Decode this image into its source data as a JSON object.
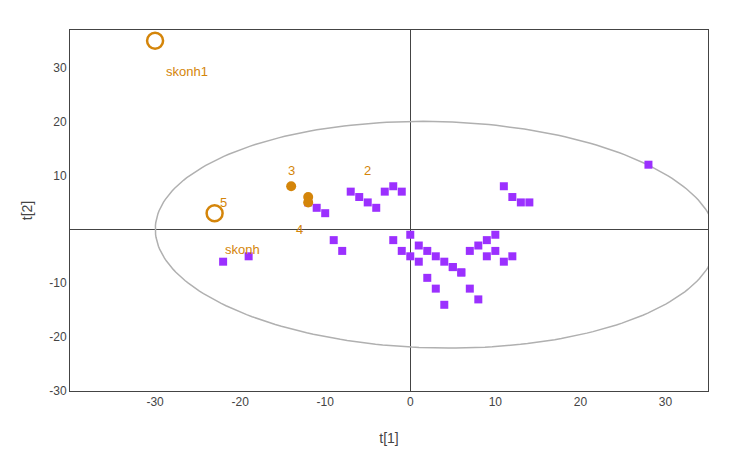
{
  "chart_data": {
    "type": "scatter",
    "xlabel": "t[1]",
    "ylabel": "t[2]",
    "xlim": [
      -40,
      35
    ],
    "ylim": [
      -30,
      37
    ],
    "xticks": [
      -30,
      -20,
      -10,
      0,
      10,
      20,
      30
    ],
    "yticks": [
      -30,
      -20,
      -10,
      10,
      20,
      30
    ],
    "grid": false,
    "series": [
      {
        "color": "#9B30FF",
        "marker": "square",
        "x": [
          -22,
          -19,
          -12,
          -11,
          -10,
          -9,
          -8,
          -7,
          -6,
          -5,
          -4,
          -3,
          -2,
          -1,
          0,
          1,
          2,
          3,
          4,
          5,
          6,
          7,
          8,
          9,
          10,
          11,
          12,
          13,
          14,
          -2,
          -1,
          0,
          1,
          2,
          3,
          4,
          5,
          6,
          7,
          8,
          9,
          10,
          11,
          12,
          28
        ],
        "values": [
          -6,
          -5,
          5,
          4,
          3,
          -2,
          -4,
          7,
          6,
          5,
          4,
          7,
          8,
          7,
          -1,
          -3,
          -4,
          -5,
          -6,
          -7,
          -8,
          -4,
          -3,
          -2,
          -1,
          8,
          6,
          5,
          5,
          -2,
          -4,
          -5,
          -6,
          -9,
          -11,
          -14,
          -7,
          -8,
          -11,
          -13,
          -5,
          -4,
          -6,
          -5,
          12
        ]
      },
      {
        "color": "#D4850A",
        "marker": "circle",
        "x": [
          -14,
          -12,
          -12
        ],
        "values": [
          8,
          6,
          5
        ]
      },
      {
        "color": "#D4850A",
        "marker": "circle-open",
        "x": [
          -30,
          -23
        ],
        "values": [
          35,
          3
        ]
      }
    ],
    "ellipse": {
      "cx": 3,
      "cy": -1,
      "width": 66,
      "height": 42,
      "angle": -3,
      "color": "#b0b0b0"
    },
    "point_labels": [
      {
        "text": "skonh1",
        "x": -29,
        "y": 31,
        "color": "#D4850A"
      },
      {
        "text": "skonh",
        "x": -22,
        "y": -2,
        "color": "#D4850A"
      }
    ],
    "cluster_labels": [
      {
        "text": "3",
        "x": -14,
        "y": 11,
        "color": "#D4850A"
      },
      {
        "text": "2",
        "x": -5,
        "y": 11,
        "color": "#D4850A"
      },
      {
        "text": "4",
        "x": -13,
        "y": 0,
        "color": "#D4850A"
      },
      {
        "text": "5",
        "x": -22,
        "y": 5,
        "color": "#D4850A"
      }
    ]
  }
}
